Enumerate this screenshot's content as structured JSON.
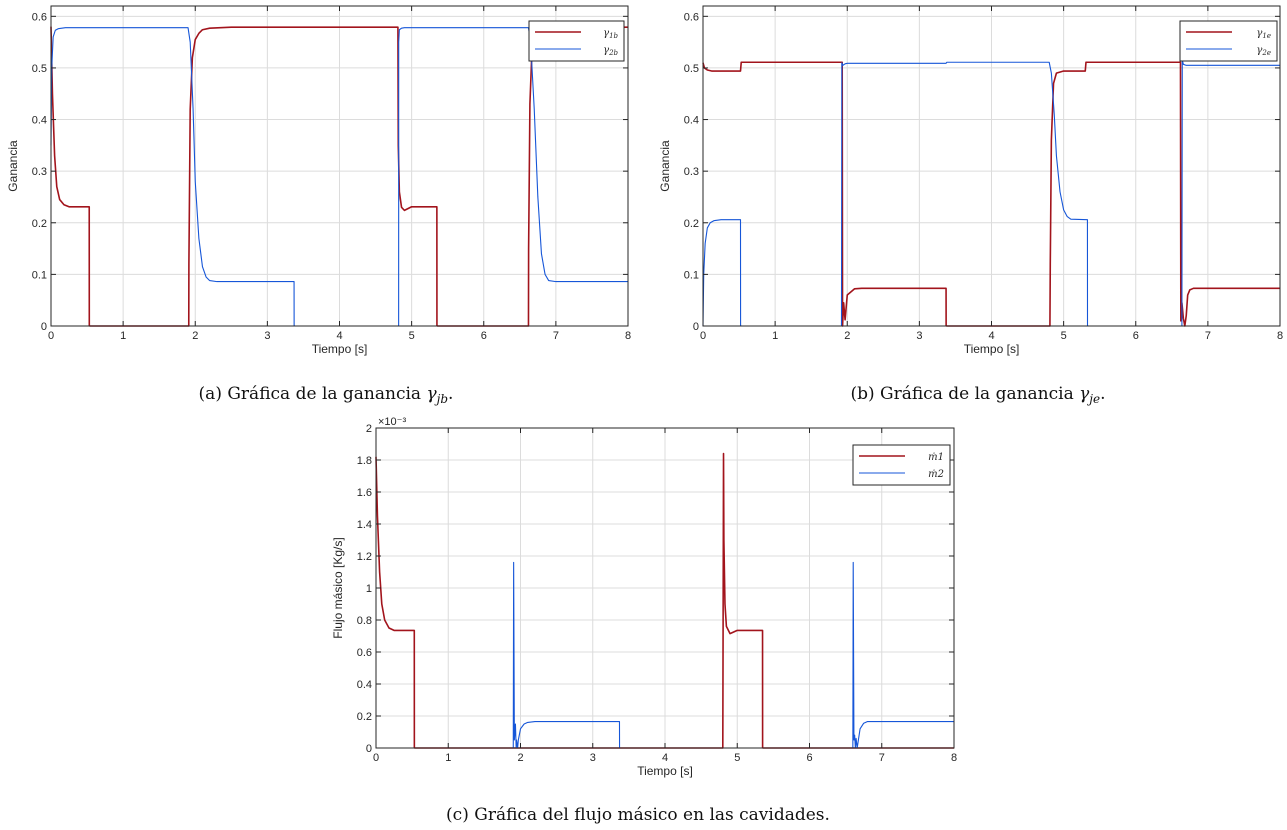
{
  "colors": {
    "series1": "#a2141c",
    "series2": "#1656d8"
  },
  "chart_data": [
    {
      "type": "line",
      "ylabel": "Ganancia",
      "xlabel": "Tiempo [s]",
      "xlim": [
        0,
        8
      ],
      "ylim": [
        0,
        0.62
      ],
      "xticks": [
        "0",
        "1",
        "2",
        "3",
        "4",
        "5",
        "6",
        "7",
        "8"
      ],
      "xtick_values": [
        0,
        1,
        2,
        3,
        4,
        5,
        6,
        7,
        8
      ],
      "yticks": [
        "0",
        "0.1",
        "0.2",
        "0.3",
        "0.4",
        "0.5",
        "0.6"
      ],
      "ytick_values": [
        0,
        0.1,
        0.2,
        0.3,
        0.4,
        0.5,
        0.6
      ],
      "grid": true,
      "legend": "top-right",
      "caption": {
        "prefix": "(a) Gráfica de la ganancia ",
        "math": "γ",
        "sub": "jb",
        "suffix": "."
      },
      "series": [
        {
          "name": "γ1b",
          "name_main": "γ",
          "name_sub": "1b",
          "color_key": "series1",
          "x": [
            0,
            0.02,
            0.05,
            0.08,
            0.12,
            0.18,
            0.25,
            0.35,
            0.53,
            0.531,
            0.54,
            1.91,
            1.912,
            1.93,
            1.96,
            2.0,
            2.05,
            2.1,
            2.2,
            2.5,
            4.81,
            4.815,
            4.83,
            4.86,
            4.9,
            5.0,
            5.35,
            5.351,
            5.36,
            6.62,
            6.622,
            6.64,
            6.67,
            6.72,
            6.8,
            7.0,
            8
          ],
          "y": [
            0.58,
            0.45,
            0.33,
            0.27,
            0.245,
            0.235,
            0.231,
            0.231,
            0.231,
            0.001,
            0,
            0,
            0.12,
            0.42,
            0.52,
            0.555,
            0.567,
            0.574,
            0.577,
            0.579,
            0.579,
            0.35,
            0.26,
            0.23,
            0.224,
            0.231,
            0.231,
            0.001,
            0,
            0,
            0.15,
            0.43,
            0.54,
            0.568,
            0.576,
            0.579,
            0.579
          ]
        },
        {
          "name": "γ2b",
          "name_main": "γ",
          "name_sub": "2b",
          "color_key": "series2",
          "x": [
            0,
            0.01,
            0.03,
            0.06,
            0.1,
            0.2,
            1.9,
            1.93,
            1.97,
            2.0,
            2.05,
            2.1,
            2.15,
            2.2,
            2.3,
            3.37,
            3.371,
            3.38,
            4.82,
            4.821,
            4.83,
            4.86,
            4.9,
            5.0,
            6.62,
            6.65,
            6.7,
            6.75,
            6.8,
            6.85,
            6.9,
            7.0,
            8
          ],
          "y": [
            0.35,
            0.5,
            0.56,
            0.573,
            0.576,
            0.578,
            0.578,
            0.55,
            0.42,
            0.28,
            0.17,
            0.115,
            0.095,
            0.088,
            0.086,
            0.086,
            0.001,
            0,
            0,
            0.55,
            0.574,
            0.577,
            0.578,
            0.578,
            0.578,
            0.55,
            0.42,
            0.25,
            0.14,
            0.1,
            0.088,
            0.086,
            0.086
          ]
        }
      ]
    },
    {
      "type": "line",
      "ylabel": "Ganancia",
      "xlabel": "Tiempo [s]",
      "xlim": [
        0,
        8
      ],
      "ylim": [
        0,
        0.62
      ],
      "xticks": [
        "0",
        "1",
        "2",
        "3",
        "4",
        "5",
        "6",
        "7",
        "8"
      ],
      "xtick_values": [
        0,
        1,
        2,
        3,
        4,
        5,
        6,
        7,
        8
      ],
      "yticks": [
        "0",
        "0.1",
        "0.2",
        "0.3",
        "0.4",
        "0.5",
        "0.6"
      ],
      "ytick_values": [
        0,
        0.1,
        0.2,
        0.3,
        0.4,
        0.5,
        0.6
      ],
      "grid": true,
      "legend": "top-right",
      "caption": {
        "prefix": "(b) Gráfica de la ganancia ",
        "math": "γ",
        "sub": "je",
        "suffix": "."
      },
      "series": [
        {
          "name": "γ1e",
          "name_main": "γ",
          "name_sub": "1e",
          "color_key": "series1",
          "x": [
            0,
            0.02,
            0.06,
            0.12,
            0.52,
            0.53,
            1.93,
            1.935,
            1.95,
            1.97,
            2.0,
            2.1,
            2.2,
            3.37,
            3.371,
            3.38,
            4.81,
            4.815,
            4.83,
            4.86,
            4.9,
            5.0,
            5.3,
            5.31,
            6.62,
            6.625,
            6.64,
            6.66,
            6.68,
            6.7,
            6.72,
            6.75,
            6.8,
            6.9,
            8
          ],
          "y": [
            0.51,
            0.5,
            0.496,
            0.494,
            0.494,
            0.511,
            0.511,
            0.0,
            0.045,
            0.012,
            0.06,
            0.072,
            0.073,
            0.073,
            0.001,
            0,
            0,
            0.12,
            0.36,
            0.47,
            0.49,
            0.494,
            0.494,
            0.511,
            0.511,
            0.01,
            0.045,
            0.015,
            0.0,
            0.02,
            0.06,
            0.07,
            0.073,
            0.073,
            0.073
          ]
        },
        {
          "name": "γ2e",
          "name_main": "γ",
          "name_sub": "2e",
          "color_key": "series2",
          "x": [
            0,
            0.01,
            0.03,
            0.06,
            0.1,
            0.15,
            0.25,
            0.52,
            0.521,
            0.53,
            1.92,
            1.925,
            1.94,
            1.97,
            2.0,
            2.2,
            3.37,
            3.38,
            4.8,
            4.83,
            4.87,
            4.9,
            4.95,
            5.0,
            5.05,
            5.1,
            5.33,
            5.331,
            5.34,
            6.64,
            6.645,
            6.66,
            6.7,
            6.8,
            8
          ],
          "y": [
            0.0,
            0.1,
            0.16,
            0.19,
            0.2,
            0.204,
            0.206,
            0.206,
            0.001,
            0,
            0,
            0.51,
            0.505,
            0.508,
            0.509,
            0.509,
            0.509,
            0.511,
            0.511,
            0.49,
            0.41,
            0.33,
            0.26,
            0.225,
            0.212,
            0.207,
            0.206,
            0.001,
            0,
            0,
            0.515,
            0.507,
            0.505,
            0.505,
            0.505
          ]
        }
      ]
    },
    {
      "type": "line",
      "ylabel": "Flujo másico [Kg/s]",
      "xlabel": "Tiempo [s]",
      "xlim": [
        0,
        8
      ],
      "ylim": [
        0,
        2
      ],
      "yscale_note": "×10⁻³",
      "xticks": [
        "0",
        "1",
        "2",
        "3",
        "4",
        "5",
        "6",
        "7",
        "8"
      ],
      "xtick_values": [
        0,
        1,
        2,
        3,
        4,
        5,
        6,
        7,
        8
      ],
      "yticks": [
        "0",
        "0.2",
        "0.4",
        "0.6",
        "0.8",
        "1",
        "1.2",
        "1.4",
        "1.6",
        "1.8",
        "2"
      ],
      "ytick_values": [
        0,
        0.2,
        0.4,
        0.6,
        0.8,
        1,
        1.2,
        1.4,
        1.6,
        1.8,
        2
      ],
      "grid": true,
      "legend": "top-right",
      "caption": {
        "prefix": "(c) Gráfica del flujo másico en las cavidades.",
        "math": "",
        "sub": "",
        "suffix": ""
      },
      "series": [
        {
          "name": "ṁ1",
          "name_main": "ṁ1",
          "name_sub": "",
          "color_key": "series1",
          "x": [
            0,
            0.02,
            0.05,
            0.08,
            0.12,
            0.18,
            0.25,
            0.35,
            0.53,
            0.531,
            0.54,
            4.8,
            4.81,
            4.815,
            4.83,
            4.85,
            4.9,
            5.0,
            5.35,
            5.351,
            5.36,
            8
          ],
          "y": [
            1.82,
            1.45,
            1.1,
            0.9,
            0.8,
            0.75,
            0.735,
            0.735,
            0.735,
            0.001,
            0,
            0,
            1.84,
            1.3,
            0.9,
            0.76,
            0.715,
            0.735,
            0.735,
            0.001,
            0,
            0
          ]
        },
        {
          "name": "ṁ2",
          "name_main": "ṁ2",
          "name_sub": "",
          "color_key": "series2",
          "x": [
            0,
            1.9,
            1.905,
            1.915,
            1.93,
            1.94,
            1.945,
            1.96,
            1.97,
            2.0,
            2.05,
            2.1,
            2.2,
            3.37,
            3.371,
            3.38,
            6.6,
            6.605,
            6.615,
            6.625,
            6.635,
            6.645,
            6.66,
            6.7,
            6.75,
            6.8,
            8
          ],
          "y": [
            0,
            0,
            1.16,
            0.05,
            0.15,
            0,
            0.05,
            0,
            0.05,
            0.12,
            0.15,
            0.16,
            0.165,
            0.165,
            0.001,
            0,
            0,
            1.16,
            0.05,
            0.08,
            0,
            0.06,
            0.0,
            0.12,
            0.155,
            0.165,
            0.165
          ]
        }
      ]
    }
  ]
}
